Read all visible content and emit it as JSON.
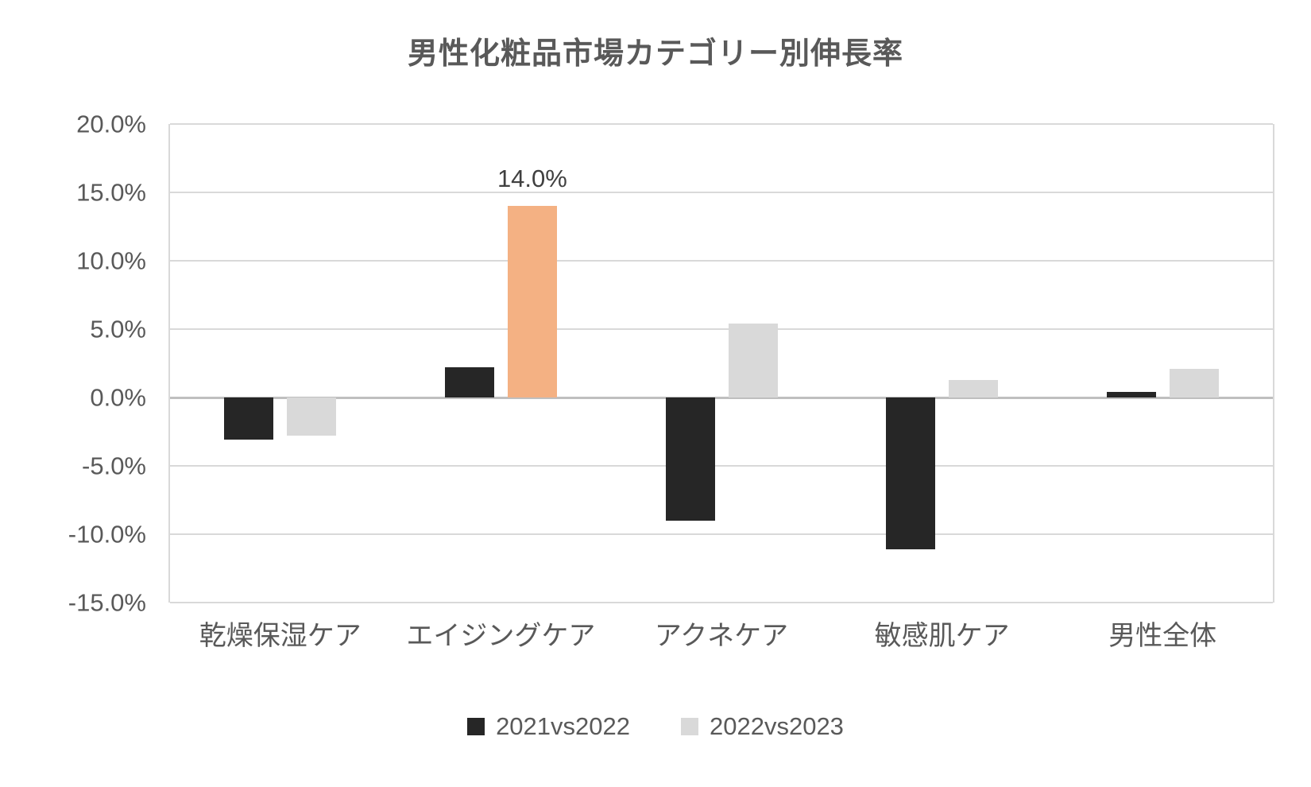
{
  "chart_data": {
    "type": "bar",
    "title": "男性化粧品市場カテゴリー別伸長率",
    "categories": [
      "乾燥保湿ケア",
      "エイジングケア",
      "アクネケア",
      "敏感肌ケア",
      "男性全体"
    ],
    "series": [
      {
        "name": "2021vs2022",
        "color": "#262626",
        "values": [
          -3.1,
          2.2,
          -9.0,
          -11.1,
          0.4
        ]
      },
      {
        "name": "2022vs2023",
        "color": "#d9d9d9",
        "values": [
          -2.8,
          14.0,
          5.4,
          1.3,
          2.1
        ]
      }
    ],
    "highlight": {
      "series": "2022vs2023",
      "category": "エイジングケア",
      "color": "#f4b183",
      "data_label": "14.0%"
    },
    "ylim": [
      -15,
      20
    ],
    "ytick_step": 5,
    "ytick_labels": [
      "20.0%",
      "15.0%",
      "10.0%",
      "5.0%",
      "0.0%",
      "-5.0%",
      "-10.0%",
      "-15.0%"
    ],
    "grid": true,
    "legend_position": "bottom",
    "colors": {
      "background": "#ffffff",
      "gridline": "#d9d9d9",
      "zero_line": "#bfbfbf",
      "text": "#595959",
      "data_label_text": "#404040"
    }
  }
}
